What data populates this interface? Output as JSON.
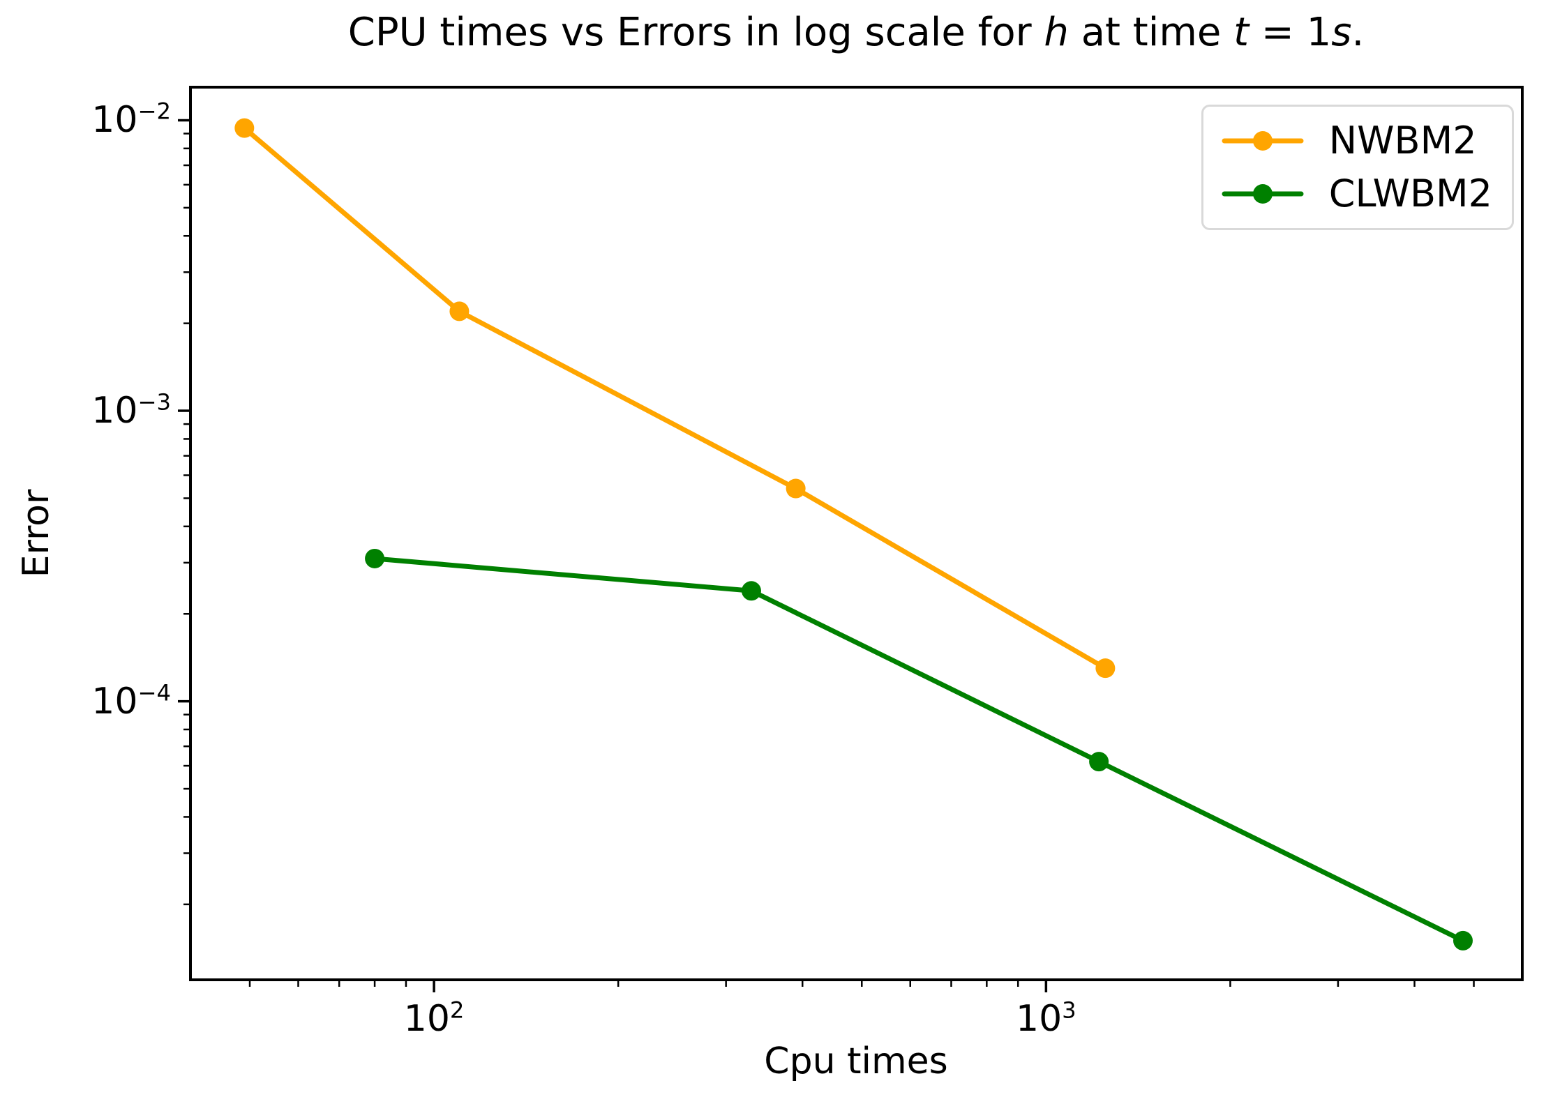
{
  "figure": {
    "background": "#ffffff",
    "axis_color": "#000000",
    "legend_border_color": "#d9d9d9"
  },
  "chart_data": {
    "type": "line",
    "title": "CPU times vs Errors in log scale for h at time t = 1s.",
    "title_parts": [
      {
        "text": "CPU times vs Errors in log scale for ",
        "italic": false
      },
      {
        "text": "h",
        "italic": true
      },
      {
        "text": " at time ",
        "italic": false
      },
      {
        "text": "t",
        "italic": true
      },
      {
        "text": " = 1",
        "italic": false
      },
      {
        "text": "s",
        "italic": true
      },
      {
        "text": ".",
        "italic": false
      }
    ],
    "xlabel": "Cpu times",
    "ylabel": "Error",
    "x_scale": "log",
    "y_scale": "log",
    "xlim": [
      40,
      6000
    ],
    "ylim": [
      1.1e-05,
      0.013
    ],
    "grid": false,
    "x_ticks": [
      {
        "value": 100,
        "label": "10^2"
      },
      {
        "value": 1000,
        "label": "10^3"
      }
    ],
    "y_ticks": [
      {
        "value": 0.01,
        "label": "10^−2"
      },
      {
        "value": 0.001,
        "label": "10^−3"
      },
      {
        "value": 0.0001,
        "label": "10^−4"
      }
    ],
    "legend_position": "upper right",
    "series": [
      {
        "name": "NWBM2",
        "color": "#FFA500",
        "x": [
          49,
          110,
          390,
          1250
        ],
        "y": [
          0.0094,
          0.0022,
          0.00054,
          0.00013
        ]
      },
      {
        "name": "CLWBM2",
        "color": "#008000",
        "x": [
          80,
          330,
          1220,
          4800
        ],
        "y": [
          0.00031,
          0.00024,
          6.2e-05,
          1.5e-05
        ]
      }
    ]
  }
}
